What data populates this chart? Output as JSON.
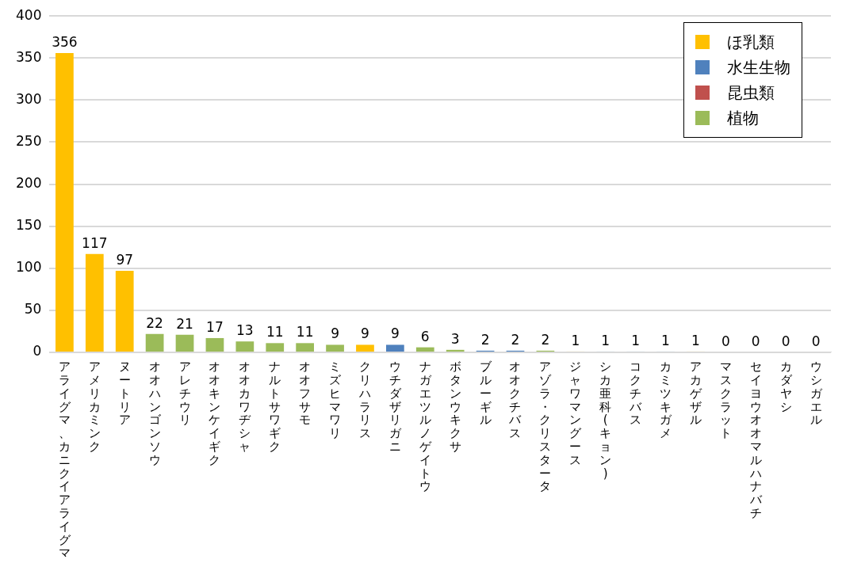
{
  "chart_data": {
    "type": "bar",
    "data_labels": true,
    "grid": "y",
    "legend": "top right",
    "categories": [
      "アライグマ、カニクイアライグマ",
      "アメリカミンク",
      "ヌートリア",
      "オオハンゴンソウ",
      "アレチウリ",
      "オオキンケイギク",
      "オオカワヂシャ",
      "ナルトサワギク",
      "オオフサモ",
      "ミズヒマワリ",
      "クリハラリス",
      "ウチダザリガニ",
      "ナガエツルノゲイトウ",
      "ボタンウキクサ",
      "ブルーギル",
      "オオクチバス",
      "アゾラ・クリスタータ",
      "ジャワマングース",
      "シカ亜科(キョン)",
      "コクチバス",
      "カミツキガメ",
      "アカゲザル",
      "マスクラット",
      "セイヨウオオマルハナバチ",
      "カダヤシ",
      "ウシガエル"
    ],
    "ylim": [
      0,
      400
    ],
    "yticks": [
      0,
      50,
      100,
      150,
      200,
      250,
      300,
      350,
      400
    ],
    "series": [
      {
        "name": "ほ乳類",
        "color": "#ffc000",
        "values": [
          356,
          117,
          97,
          null,
          null,
          null,
          null,
          null,
          null,
          null,
          9,
          null,
          null,
          null,
          null,
          null,
          null,
          1,
          null,
          null,
          null,
          1,
          0,
          null,
          null,
          null
        ]
      },
      {
        "name": "水生生物",
        "color": "#4f81bd",
        "values": [
          null,
          null,
          null,
          null,
          null,
          null,
          null,
          null,
          null,
          null,
          null,
          9,
          null,
          null,
          2,
          2,
          null,
          null,
          1,
          1,
          1,
          null,
          null,
          null,
          0,
          0
        ]
      },
      {
        "name": "昆虫類",
        "color": "#c0504d",
        "values": [
          null,
          null,
          null,
          null,
          null,
          null,
          null,
          null,
          null,
          null,
          null,
          null,
          null,
          null,
          null,
          null,
          null,
          null,
          null,
          null,
          null,
          null,
          null,
          0,
          null,
          null
        ]
      },
      {
        "name": "植物",
        "color": "#9bbb59",
        "values": [
          null,
          null,
          null,
          22,
          21,
          17,
          13,
          11,
          11,
          9,
          null,
          null,
          6,
          3,
          null,
          null,
          2,
          null,
          null,
          null,
          null,
          null,
          null,
          null,
          null,
          null
        ]
      }
    ]
  }
}
